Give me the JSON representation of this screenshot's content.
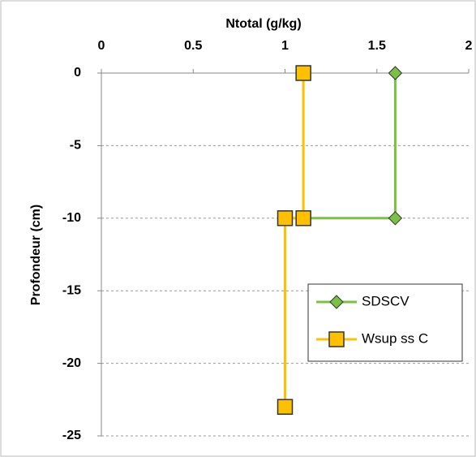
{
  "chart_data": {
    "type": "line",
    "title": "Ntotal (g/kg)",
    "y_label": "Profondeur (cm)",
    "xlim": [
      0,
      2
    ],
    "xticks": [
      0,
      0.5,
      1,
      1.5,
      2
    ],
    "ylim": [
      -25,
      0
    ],
    "yticks": [
      0,
      -5,
      -10,
      -15,
      -20,
      -25
    ],
    "grid": true,
    "legend": "right",
    "series": [
      {
        "name": "SDSCV",
        "color": "#7ac143",
        "marker": "diamond",
        "x": [
          1.6,
          1.6,
          1.1
        ],
        "values": [
          0,
          -10,
          -10
        ]
      },
      {
        "name": "Wsup ss C",
        "color": "#ffc000",
        "marker": "square",
        "x": [
          1.1,
          1.1,
          1.0,
          1.0
        ],
        "values": [
          0,
          -10,
          -10,
          -23
        ]
      }
    ]
  }
}
